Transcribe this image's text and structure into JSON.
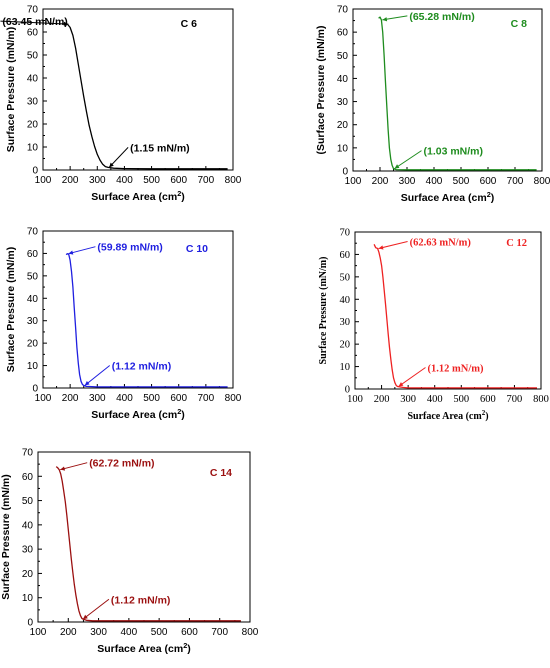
{
  "chart_data": [
    {
      "type": "line",
      "label": "C 6",
      "color": "#000000",
      "xlabel": "Surface Area (cm²)",
      "ylabel": "Surface Pressure (mN/m)",
      "xlim": [
        100,
        800
      ],
      "ylim": [
        0,
        70
      ],
      "xticks": [
        "100",
        "200",
        "300",
        "400",
        "500",
        "600",
        "700",
        "800"
      ],
      "yticks": [
        "0",
        "10",
        "20",
        "30",
        "40",
        "50",
        "60",
        "70"
      ],
      "series": [
        {
          "x": [
            170,
            180,
            190,
            200,
            210,
            220,
            230,
            240,
            250,
            260,
            270,
            280,
            290,
            300,
            310,
            320,
            330,
            340,
            360,
            400,
            500,
            600,
            700,
            780
          ],
          "values": [
            63.5,
            63.5,
            63.45,
            62,
            58.5,
            53,
            46,
            39,
            32,
            25.5,
            19.5,
            14.5,
            10.2,
            6.8,
            4.3,
            2.5,
            1.5,
            1.15,
            0.8,
            0.6,
            0.5,
            0.5,
            0.5,
            0.5
          ]
        }
      ],
      "annotations": [
        {
          "text": "(63.45 mN/m)",
          "x": 190,
          "y": 63.45
        },
        {
          "text": "(1.15 mN/m)",
          "x": 340,
          "y": 1.15
        }
      ]
    },
    {
      "type": "line",
      "label": "C 8",
      "color": "#1e8c1e",
      "xlabel": "Surface Area (cm²)",
      "ylabel": "(Surface Pressure (mN/m)",
      "xlim": [
        100,
        800
      ],
      "ylim": [
        0,
        70
      ],
      "xticks": [
        "100",
        "200",
        "300",
        "400",
        "500",
        "600",
        "700",
        "800"
      ],
      "yticks": [
        "0",
        "10",
        "20",
        "30",
        "40",
        "50",
        "60",
        "70"
      ],
      "series": [
        {
          "x": [
            195,
            200,
            205,
            210,
            215,
            220,
            225,
            230,
            235,
            240,
            245,
            250,
            260,
            300,
            400,
            500,
            600,
            700,
            780
          ],
          "values": [
            66,
            66.5,
            65.28,
            60,
            50,
            39,
            28,
            18,
            10,
            5,
            2.5,
            1.03,
            0.6,
            0.5,
            0.5,
            0.5,
            0.5,
            0.5,
            0.5
          ]
        }
      ],
      "annotations": [
        {
          "text": "(65.28 mN/m)",
          "x": 205,
          "y": 65.28
        },
        {
          "text": "(1.03 mN/m)",
          "x": 250,
          "y": 1.03
        }
      ]
    },
    {
      "type": "line",
      "label": "C 10",
      "color": "#1f1fe0",
      "xlabel": "Surface Area (cm²)",
      "ylabel": "Surface Pressure (mN/m)",
      "xlim": [
        100,
        800
      ],
      "ylim": [
        0,
        70
      ],
      "xticks": [
        "100",
        "200",
        "300",
        "400",
        "500",
        "600",
        "700",
        "800"
      ],
      "yticks": [
        "0",
        "10",
        "20",
        "30",
        "40",
        "50",
        "60",
        "70"
      ],
      "series": [
        {
          "x": [
            185,
            190,
            195,
            200,
            205,
            210,
            215,
            220,
            225,
            230,
            235,
            240,
            245,
            250,
            260,
            300,
            400,
            500,
            600,
            700,
            780
          ],
          "values": [
            59.5,
            59.89,
            59.5,
            57,
            52,
            45,
            36,
            27,
            18,
            11,
            6,
            3,
            1.6,
            1.12,
            0.7,
            0.5,
            0.5,
            0.5,
            0.5,
            0.5,
            0.5
          ]
        }
      ],
      "annotations": [
        {
          "text": "(59.89 mN/m)",
          "x": 190,
          "y": 59.89
        },
        {
          "text": "(1.12 mN/m)",
          "x": 250,
          "y": 1.12
        }
      ]
    },
    {
      "type": "line",
      "label": "C 12",
      "color": "#ee2222",
      "xlabel": "Surface Area (cm²)",
      "ylabel": "Surface Pressure (mN/m)",
      "xlim": [
        100,
        800
      ],
      "ylim": [
        0,
        70
      ],
      "xticks": [
        "100",
        "200",
        "300",
        "400",
        "500",
        "600",
        "700",
        "800"
      ],
      "yticks": [
        "0",
        "10",
        "20",
        "30",
        "40",
        "50",
        "60",
        "70"
      ],
      "series": [
        {
          "x": [
            172,
            178,
            185,
            190,
            195,
            200,
            205,
            210,
            215,
            220,
            225,
            230,
            235,
            240,
            245,
            250,
            255,
            260,
            280,
            300,
            400,
            500,
            600,
            700,
            785
          ],
          "values": [
            64.5,
            63,
            62.63,
            61,
            58.5,
            55,
            50,
            44,
            37.5,
            31,
            24.5,
            18.5,
            13,
            8.5,
            5,
            2.8,
            1.6,
            1.12,
            0.7,
            0.5,
            0.5,
            0.5,
            0.5,
            0.5,
            0.5
          ]
        }
      ],
      "annotations": [
        {
          "text": "(62.63 mN/m)",
          "x": 185,
          "y": 62.63
        },
        {
          "text": "(1.12 mN/m)",
          "x": 260,
          "y": 1.12
        }
      ]
    },
    {
      "type": "line",
      "label": "C 14",
      "color": "#9b1010",
      "xlabel": "Surface Area (cm²)",
      "ylabel": "Surface Pressure (mN/m)",
      "xlim": [
        100,
        800
      ],
      "ylim": [
        0,
        70
      ],
      "xticks": [
        "100",
        "200",
        "300",
        "400",
        "500",
        "600",
        "700",
        "800"
      ],
      "yticks": [
        "0",
        "10",
        "20",
        "30",
        "40",
        "50",
        "60",
        "70"
      ],
      "series": [
        {
          "x": [
            160,
            165,
            170,
            175,
            180,
            185,
            190,
            195,
            200,
            205,
            210,
            215,
            220,
            225,
            230,
            235,
            240,
            245,
            250,
            260,
            280,
            300,
            400,
            500,
            600,
            700,
            770
          ],
          "values": [
            64,
            63.5,
            62.72,
            61,
            58,
            54,
            49.5,
            44,
            38,
            32,
            26,
            20.5,
            15.5,
            11,
            7.5,
            4.6,
            2.7,
            1.5,
            1.12,
            0.7,
            0.5,
            0.5,
            0.5,
            0.5,
            0.5,
            0.5,
            0.5
          ]
        }
      ],
      "annotations": [
        {
          "text": "(62.72 mN/m)",
          "x": 170,
          "y": 62.72
        },
        {
          "text": "(1.12 mN/m)",
          "x": 245,
          "y": 1.12
        }
      ]
    }
  ]
}
